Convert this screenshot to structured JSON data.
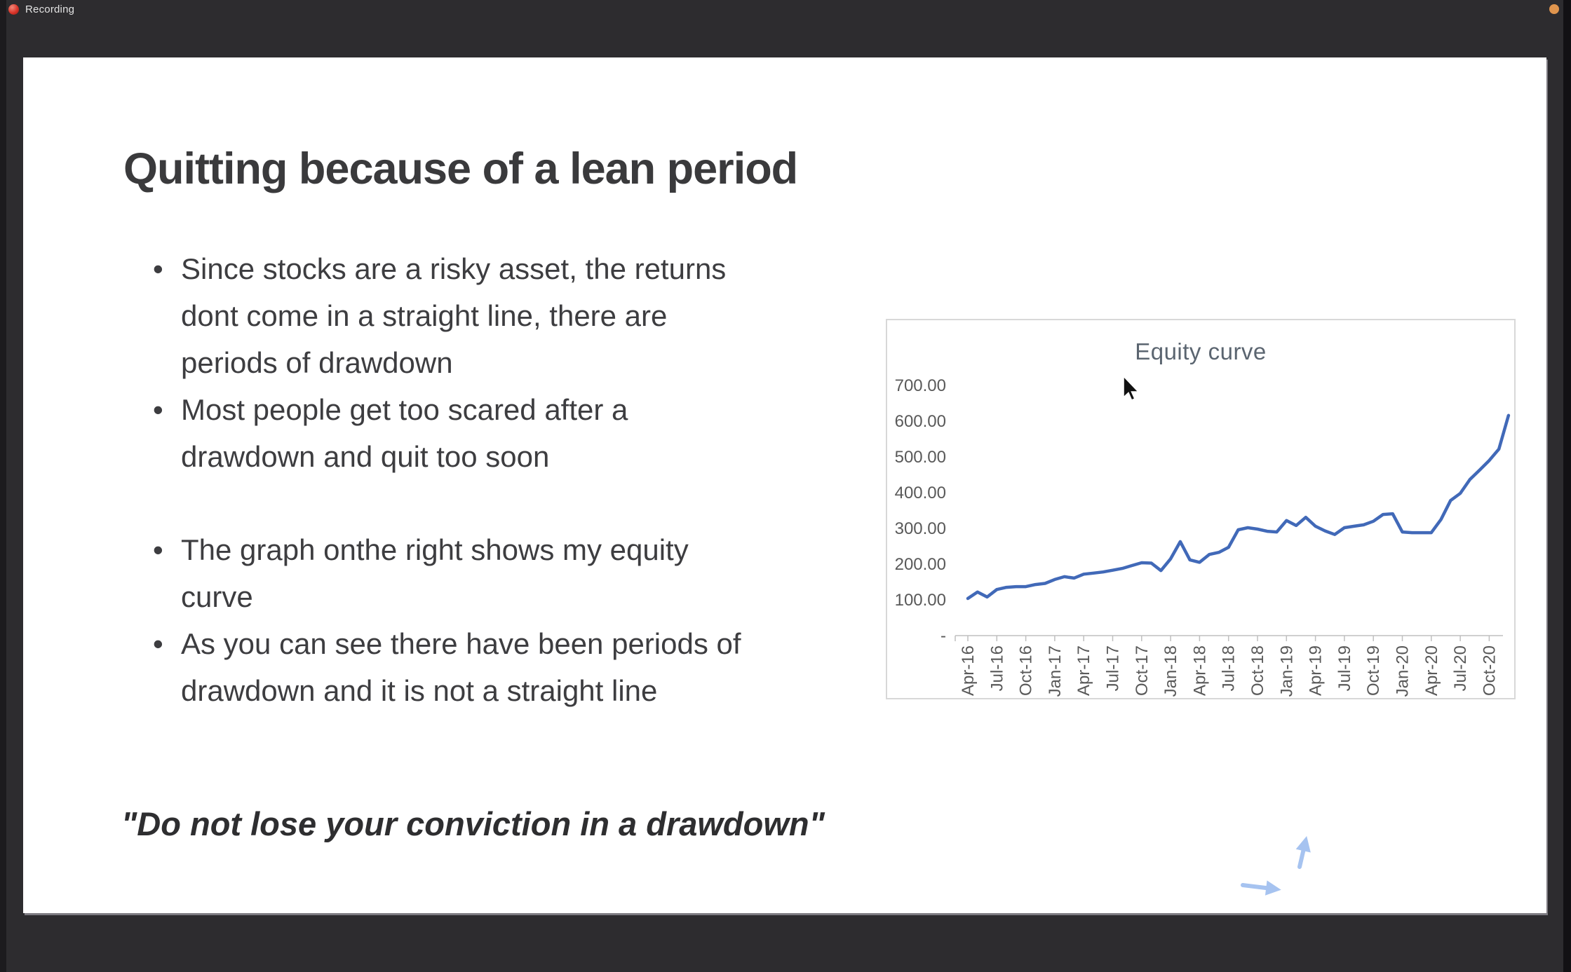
{
  "recording_bar": {
    "label": "Recording"
  },
  "status": {
    "orange_dot_color": "#e0954e"
  },
  "slide": {
    "title": "Quitting because of a lean period",
    "bullets": [
      "Since stocks are a risky asset, the returns\ndont come in a straight line, there are\nperiods of drawdown",
      "Most people get too scared after a\ndrawdown and quit too soon",
      "The graph onthe right shows my equity\ncurve",
      "As you can see there have been periods of\ndrawdown and it is not a straight line"
    ],
    "quote": "\"Do not lose your conviction in a drawdown\""
  },
  "chart_data": {
    "type": "line",
    "title": "Equity curve",
    "xlabel": "",
    "ylabel": "",
    "grid": false,
    "legend": "none",
    "line_color": "#4169b8",
    "axis_color": "#bfbfbf",
    "ylim": [
      0,
      750
    ],
    "y_tick_values": [
      0,
      100,
      200,
      300,
      400,
      500,
      600,
      700
    ],
    "y_tick_labels": [
      "-",
      "100.00",
      "200.00",
      "300.00",
      "400.00",
      "500.00",
      "600.00",
      "700.00"
    ],
    "x_tick_labels": [
      "Apr-16",
      "Jul-16",
      "Oct-16",
      "Jan-17",
      "Apr-17",
      "Jul-17",
      "Oct-17",
      "Jan-18",
      "Apr-18",
      "Jul-18",
      "Oct-18",
      "Jan-19",
      "Apr-19",
      "Jul-19",
      "Oct-19",
      "Jan-20",
      "Apr-20",
      "Jul-20",
      "Oct-20"
    ],
    "x": [
      "Apr-16",
      "May-16",
      "Jun-16",
      "Jul-16",
      "Aug-16",
      "Sep-16",
      "Oct-16",
      "Nov-16",
      "Dec-16",
      "Jan-17",
      "Feb-17",
      "Mar-17",
      "Apr-17",
      "May-17",
      "Jun-17",
      "Jul-17",
      "Aug-17",
      "Sep-17",
      "Oct-17",
      "Nov-17",
      "Dec-17",
      "Jan-18",
      "Feb-18",
      "Mar-18",
      "Apr-18",
      "May-18",
      "Jun-18",
      "Jul-18",
      "Aug-18",
      "Sep-18",
      "Oct-18",
      "Nov-18",
      "Dec-18",
      "Jan-19",
      "Feb-19",
      "Mar-19",
      "Apr-19",
      "May-19",
      "Jun-19",
      "Jul-19",
      "Aug-19",
      "Sep-19",
      "Oct-19",
      "Nov-19",
      "Dec-19",
      "Jan-20",
      "Feb-20",
      "Mar-20",
      "Apr-20",
      "May-20",
      "Jun-20",
      "Jul-20",
      "Aug-20",
      "Sep-20",
      "Oct-20",
      "Nov-20",
      "Dec-20"
    ],
    "values": [
      104,
      122,
      108,
      129,
      135,
      137,
      137,
      143,
      146,
      157,
      165,
      161,
      172,
      175,
      178,
      183,
      188,
      196,
      204,
      203,
      182,
      215,
      263,
      212,
      205,
      227,
      233,
      247,
      296,
      302,
      298,
      292,
      290,
      322,
      308,
      331,
      306,
      293,
      283,
      302,
      306,
      310,
      320,
      339,
      341,
      290,
      288,
      288,
      288,
      325,
      378,
      398,
      437,
      463,
      490,
      522,
      616
    ]
  }
}
